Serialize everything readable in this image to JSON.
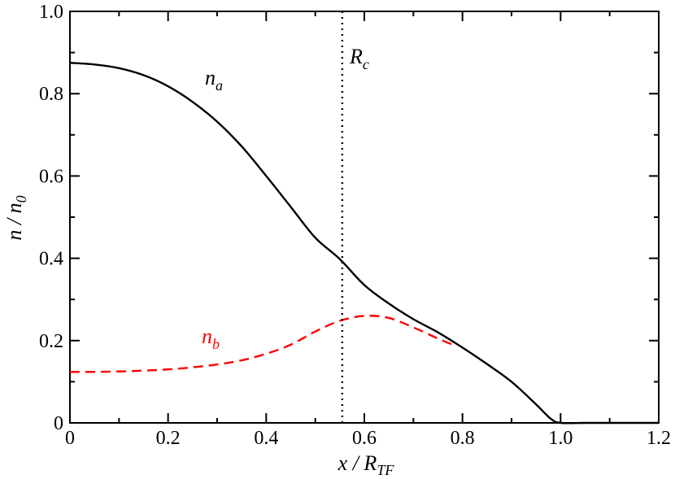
{
  "chart_data": {
    "type": "line",
    "title": "",
    "xlabel": {
      "base": "x / R",
      "sub": "TF"
    },
    "ylabel": {
      "base": "n / n",
      "sub": "0"
    },
    "xlim": [
      0,
      1.2
    ],
    "ylim": [
      0,
      1.0
    ],
    "x_ticks": [
      "0",
      "0.2",
      "0.4",
      "0.6",
      "0.8",
      "1.0",
      "1.2"
    ],
    "y_ticks": [
      "0",
      "0.2",
      "0.4",
      "0.6",
      "0.8",
      "1.0"
    ],
    "x_tick_values": [
      0,
      0.2,
      0.4,
      0.6,
      0.8,
      1.0,
      1.2
    ],
    "y_tick_values": [
      0,
      0.2,
      0.4,
      0.6,
      0.8,
      1.0
    ],
    "grid": false,
    "series": [
      {
        "name_base": "n",
        "name_sub": "a",
        "color": "#000000",
        "dash": "solid",
        "x": [
          0,
          0.05,
          0.1,
          0.15,
          0.2,
          0.25,
          0.3,
          0.35,
          0.4,
          0.45,
          0.5,
          0.55,
          0.6,
          0.65,
          0.7,
          0.75,
          0.8,
          0.85,
          0.9,
          0.95,
          0.98,
          1.0,
          1.05,
          1.1,
          1.15,
          1.2
        ],
        "y": [
          0.875,
          0.871,
          0.862,
          0.845,
          0.818,
          0.78,
          0.732,
          0.672,
          0.6,
          0.525,
          0.45,
          0.398,
          0.335,
          0.29,
          0.252,
          0.22,
          0.183,
          0.143,
          0.1,
          0.045,
          0.01,
          0.0,
          0.0,
          0.0,
          0.0,
          0.0
        ]
      },
      {
        "name_base": "n",
        "name_sub": "b",
        "color": "#ff0000",
        "dash": "dashed",
        "x": [
          0,
          0.05,
          0.1,
          0.15,
          0.2,
          0.25,
          0.3,
          0.35,
          0.4,
          0.45,
          0.5,
          0.55,
          0.6,
          0.65,
          0.7,
          0.75,
          0.78
        ],
        "y": [
          0.124,
          0.124,
          0.125,
          0.127,
          0.13,
          0.135,
          0.142,
          0.152,
          0.168,
          0.19,
          0.222,
          0.248,
          0.26,
          0.255,
          0.232,
          0.205,
          0.19
        ]
      }
    ],
    "vline": {
      "x": 0.555,
      "color": "#000000",
      "dash": "dotted",
      "label_base": "R",
      "label_sub": "c"
    }
  }
}
